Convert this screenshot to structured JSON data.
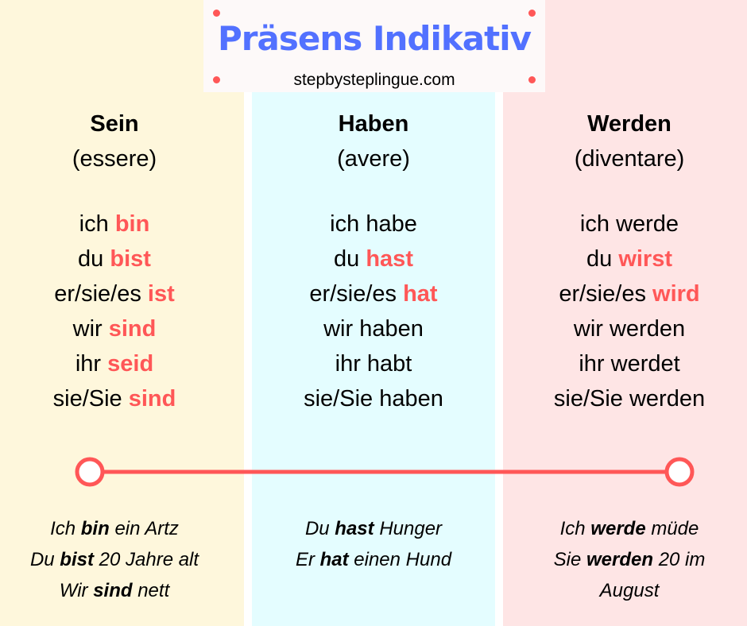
{
  "header": {
    "title": "Präsens Indikativ",
    "subtitle": "stepbysteplingue.com"
  },
  "columns": [
    {
      "verb": "Sein",
      "translation": "(essere)",
      "conjugations": [
        {
          "pronoun": "ich",
          "form": "bin",
          "highlight": true
        },
        {
          "pronoun": "du",
          "form": "bist",
          "highlight": true
        },
        {
          "pronoun": "er/sie/es",
          "form": "ist",
          "highlight": true
        },
        {
          "pronoun": "wir",
          "form": "sind",
          "highlight": true
        },
        {
          "pronoun": "ihr",
          "form": "seid",
          "highlight": true
        },
        {
          "pronoun": "sie/Sie",
          "form": "sind",
          "highlight": true
        }
      ],
      "examples": [
        [
          {
            "text": "Ich",
            "bold": false
          },
          {
            "text": "bin",
            "bold": true
          },
          {
            "text": "ein Artz",
            "bold": false
          }
        ],
        [
          {
            "text": "Du",
            "bold": false
          },
          {
            "text": "bist",
            "bold": true
          },
          {
            "text": "20 Jahre alt",
            "bold": false
          }
        ],
        [
          {
            "text": "Wir",
            "bold": false
          },
          {
            "text": "sind",
            "bold": true
          },
          {
            "text": "nett",
            "bold": false
          }
        ]
      ]
    },
    {
      "verb": "Haben",
      "translation": "(avere)",
      "conjugations": [
        {
          "pronoun": "ich",
          "form": "habe",
          "highlight": false
        },
        {
          "pronoun": "du",
          "form": "hast",
          "highlight": true
        },
        {
          "pronoun": "er/sie/es",
          "form": "hat",
          "highlight": true
        },
        {
          "pronoun": "wir",
          "form": "haben",
          "highlight": false
        },
        {
          "pronoun": "ihr",
          "form": "habt",
          "highlight": false
        },
        {
          "pronoun": "sie/Sie",
          "form": "haben",
          "highlight": false
        }
      ],
      "examples": [
        [
          {
            "text": "Du",
            "bold": false
          },
          {
            "text": "hast",
            "bold": true
          },
          {
            "text": "Hunger",
            "bold": false
          }
        ],
        [
          {
            "text": "Er",
            "bold": false
          },
          {
            "text": "hat",
            "bold": true
          },
          {
            "text": "einen Hund",
            "bold": false
          }
        ]
      ]
    },
    {
      "verb": "Werden",
      "translation": "(diventare)",
      "conjugations": [
        {
          "pronoun": "ich",
          "form": "werde",
          "highlight": false
        },
        {
          "pronoun": "du",
          "form": "wirst",
          "highlight": true
        },
        {
          "pronoun": "er/sie/es",
          "form": "wird",
          "highlight": true
        },
        {
          "pronoun": "wir",
          "form": "werden",
          "highlight": false
        },
        {
          "pronoun": "ihr",
          "form": "werdet",
          "highlight": false
        },
        {
          "pronoun": "sie/Sie",
          "form": "werden",
          "highlight": false
        }
      ],
      "examples": [
        [
          {
            "text": "Ich",
            "bold": false
          },
          {
            "text": "werde",
            "bold": true
          },
          {
            "text": "müde",
            "bold": false
          }
        ],
        [
          {
            "text": "Sie",
            "bold": false
          },
          {
            "text": "werden",
            "bold": true
          },
          {
            "text": "20 im August",
            "bold": false
          }
        ]
      ]
    }
  ]
}
